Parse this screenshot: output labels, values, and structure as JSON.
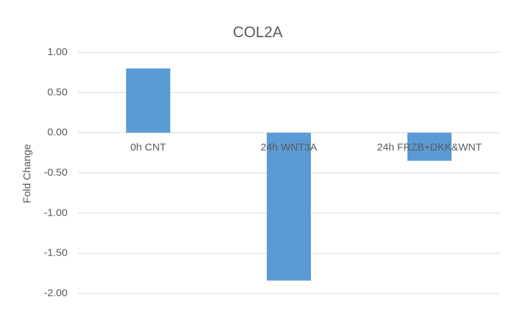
{
  "chart_data": {
    "type": "bar",
    "title": "COL2A",
    "y_label": "Fold Change",
    "categories": [
      "0h CNT",
      "24h WNT3A",
      "24h FRZB+DKK&WNT"
    ],
    "values": [
      0.8,
      -1.84,
      -0.35
    ],
    "color": "#5b9bd5",
    "ylim": [
      -2,
      1
    ],
    "yticks": [
      {
        "value": 1,
        "label": "1.00"
      },
      {
        "value": 0.5,
        "label": "0.50"
      },
      {
        "value": 0,
        "label": "0.00"
      },
      {
        "value": -0.5,
        "label": "-0.50"
      },
      {
        "value": -1,
        "label": "-1.00"
      },
      {
        "value": -1.5,
        "label": "-1.50"
      },
      {
        "value": -2,
        "label": "-2.00"
      }
    ],
    "grid": true
  }
}
